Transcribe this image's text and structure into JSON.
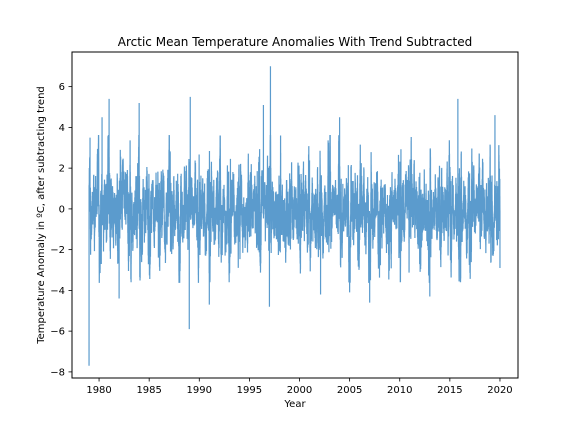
{
  "chart_data": {
    "type": "line",
    "title": "Arctic Mean Temperature Anomalies With Trend Subtracted",
    "xlabel": "Year",
    "ylabel": "Temperature Anomaly in ºC, after subtracting trend",
    "xlim": [
      1977.3,
      2021.8
    ],
    "ylim": [
      -8.3,
      7.7
    ],
    "xticks": [
      1980,
      1985,
      1990,
      1995,
      2000,
      2005,
      2010,
      2015,
      2020
    ],
    "yticks": [
      -8,
      -6,
      -4,
      -2,
      0,
      2,
      4,
      6
    ],
    "grid": false,
    "legend": "none",
    "series": [
      {
        "color": "#3e8ac4",
        "x_start": 1979.0,
        "x_end": 2020.0,
        "step_years": 0.00274,
        "note_points": [
          {
            "x": 1979.0,
            "y": -7.7
          },
          {
            "x": 1979.1,
            "y": 3.5
          },
          {
            "x": 1980.3,
            "y": 4.5
          },
          {
            "x": 1981.0,
            "y": 5.4
          },
          {
            "x": 1982.0,
            "y": -4.4
          },
          {
            "x": 1984.0,
            "y": 5.2
          },
          {
            "x": 1989.0,
            "y": -5.9
          },
          {
            "x": 1989.1,
            "y": 5.5
          },
          {
            "x": 1991.0,
            "y": -4.7
          },
          {
            "x": 1996.4,
            "y": 5.1
          },
          {
            "x": 1997.1,
            "y": 7.0
          },
          {
            "x": 1997.0,
            "y": -4.8
          },
          {
            "x": 2002.1,
            "y": -4.2
          },
          {
            "x": 2004.0,
            "y": 4.5
          },
          {
            "x": 2005.0,
            "y": -4.1
          },
          {
            "x": 2007.0,
            "y": -4.6
          },
          {
            "x": 2013.0,
            "y": -4.3
          },
          {
            "x": 2015.8,
            "y": 5.4
          },
          {
            "x": 2019.5,
            "y": 4.6
          },
          {
            "x": 2020.0,
            "y": -2.9
          }
        ]
      }
    ]
  }
}
